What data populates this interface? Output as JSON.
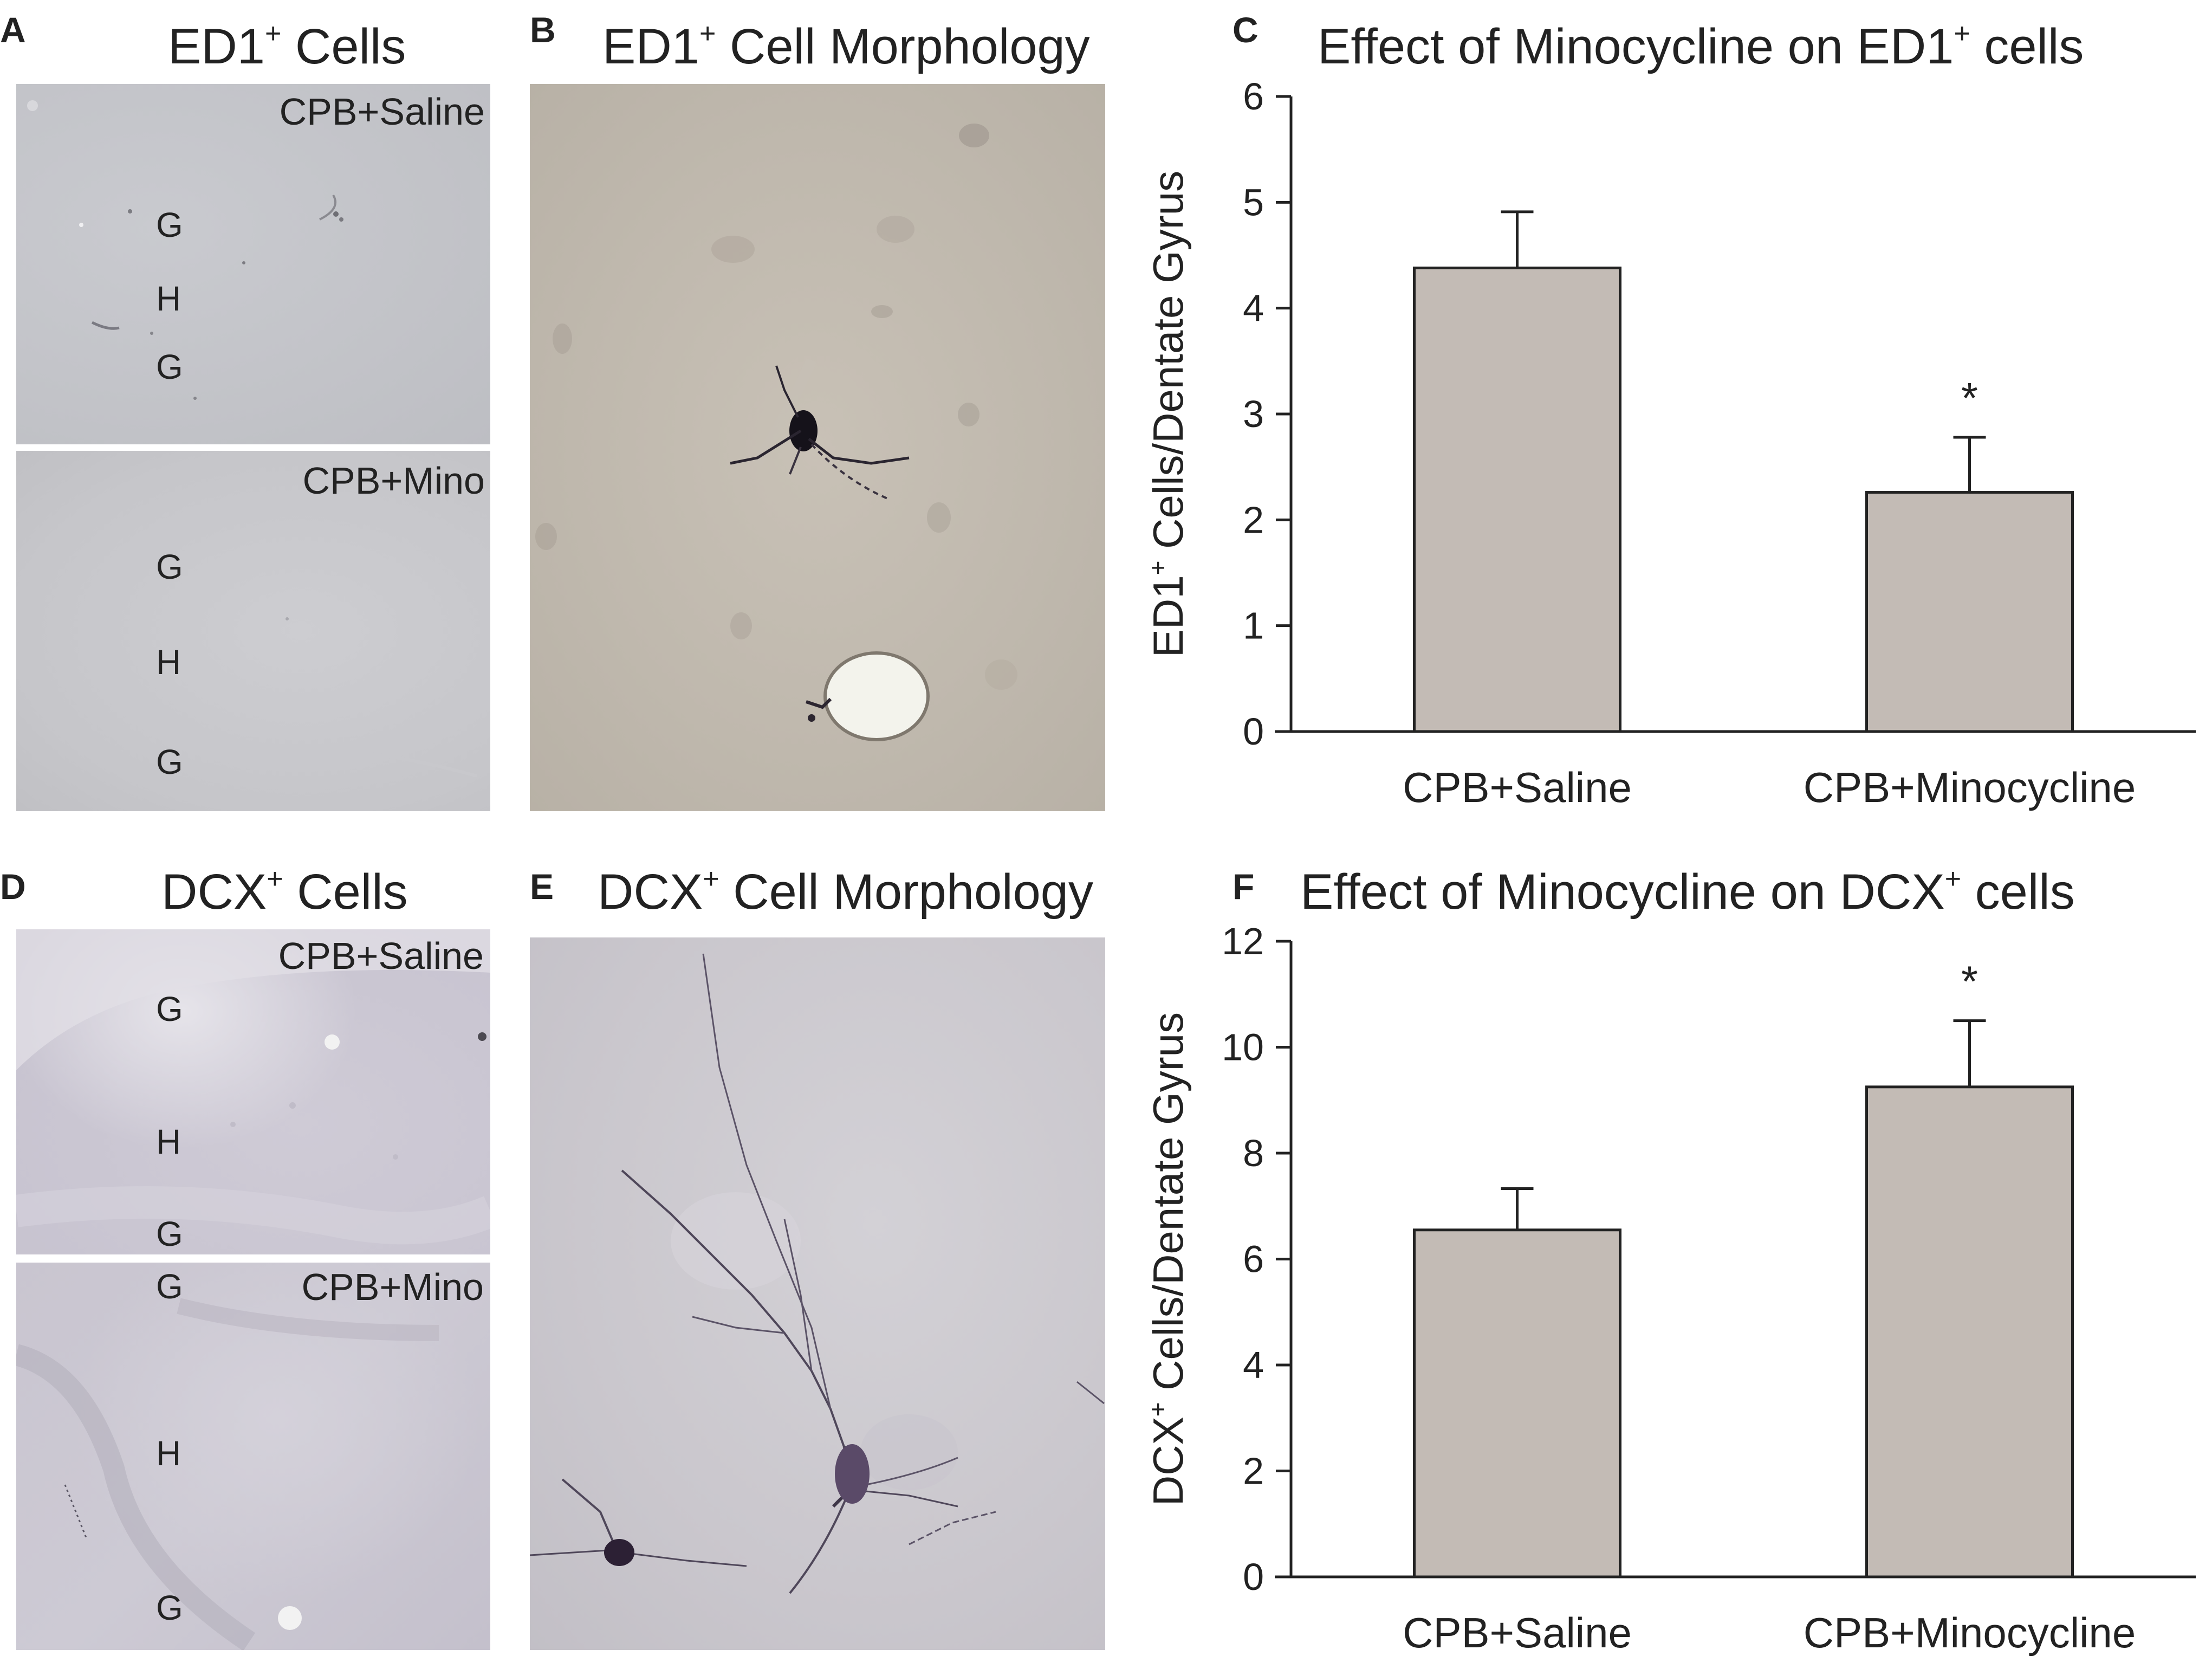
{
  "panels": {
    "a": {
      "letter": "A",
      "title_main": "ED1",
      "title_sup": "+",
      "title_rest": " Cells",
      "top_condition": "CPB+Saline",
      "bottom_condition": "CPB+Mino",
      "top_labels": [
        "G",
        "H",
        "G"
      ],
      "bottom_labels": [
        "G",
        "H",
        "G"
      ]
    },
    "b": {
      "letter": "B",
      "title_main": "ED1",
      "title_sup": "+",
      "title_rest": " Cell Morphology"
    },
    "c": {
      "letter": "C",
      "title_main": "Effect of Minocycline on ED1",
      "title_sup": "+",
      "title_rest": " cells"
    },
    "d": {
      "letter": "D",
      "title_main": "DCX",
      "title_sup": "+",
      "title_rest": " Cells",
      "top_condition": "CPB+Saline",
      "bottom_condition": "CPB+Mino",
      "top_labels": [
        "G",
        "H",
        "G"
      ],
      "bottom_labels": [
        "G",
        "H",
        "G"
      ]
    },
    "e": {
      "letter": "E",
      "title_main": "DCX",
      "title_sup": "+",
      "title_rest": " Cell Morphology"
    },
    "f": {
      "letter": "F",
      "title_main": "Effect of Minocycline on DCX",
      "title_sup": "+",
      "title_rest": " cells"
    }
  },
  "chart_data": [
    {
      "type": "bar",
      "panel": "C",
      "title": "Effect of Minocycline on ED1+ cells",
      "ylabel_main": "ED1",
      "ylabel_sup": "+",
      "ylabel_rest": " Cells/Dentate Gyrus",
      "categories": [
        "CPB+Saline",
        "CPB+Minocycline"
      ],
      "values": [
        4.38,
        2.26
      ],
      "errors": [
        0.53,
        0.52
      ],
      "significance": [
        "",
        "*"
      ],
      "ylim": [
        0,
        6
      ],
      "yticks": [
        0,
        1,
        2,
        3,
        4,
        5,
        6
      ],
      "bar_color": "#c3bbb5",
      "grid": false
    },
    {
      "type": "bar",
      "panel": "F",
      "title": "Effect of Minocycline on DCX+ cells",
      "ylabel_main": "DCX",
      "ylabel_sup": "+",
      "ylabel_rest": " Cells/Dentate Gyrus",
      "categories": [
        "CPB+Saline",
        "CPB+Minocycline"
      ],
      "values": [
        6.55,
        9.25
      ],
      "errors": [
        0.78,
        1.25
      ],
      "significance": [
        "",
        "*"
      ],
      "ylim": [
        0,
        12
      ],
      "yticks": [
        0,
        2,
        4,
        6,
        8,
        10,
        12
      ],
      "bar_color": "#c3bbb5",
      "grid": false
    }
  ]
}
